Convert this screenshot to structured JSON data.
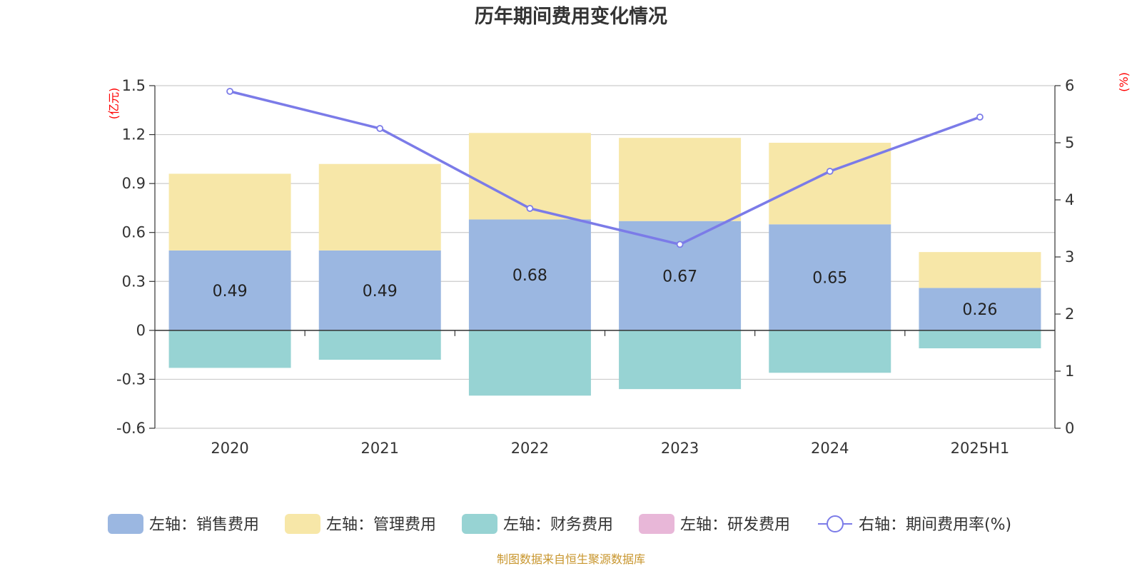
{
  "title": "历年期间费用变化情况",
  "source": "制图数据来自恒生聚源数据库",
  "colors": {
    "sales": "#9bb7e1",
    "admin": "#f7e7a8",
    "finance": "#97d3d3",
    "rnd": "#e8b7d8",
    "rate": "#7b7be8",
    "grid": "#cccccc",
    "unit": "#ff0000"
  },
  "chart_data": {
    "type": "bar",
    "stacked": true,
    "title": "历年期间费用变化情况",
    "categories": [
      "2020",
      "2021",
      "2022",
      "2023",
      "2024",
      "2025H1"
    ],
    "left_axis": {
      "unit": "(亿元)",
      "ylim": [
        -0.6,
        1.5
      ],
      "ticks": [
        "1.5",
        "1.2",
        "0.9",
        "0.6",
        "0.3",
        "0",
        "-0.3",
        "-0.6"
      ],
      "tick_values": [
        1.5,
        1.2,
        0.9,
        0.6,
        0.3,
        0,
        -0.3,
        -0.6
      ]
    },
    "right_axis": {
      "unit": "(%)",
      "ylim": [
        0,
        6
      ],
      "ticks": [
        "6",
        "5",
        "4",
        "3",
        "2",
        "1",
        "0"
      ],
      "tick_values": [
        6,
        5,
        4,
        3,
        2,
        1,
        0
      ]
    },
    "series": [
      {
        "name": "左轴：销售费用",
        "axis": "left",
        "type": "bar",
        "values": [
          0.49,
          0.49,
          0.68,
          0.67,
          0.65,
          0.26
        ],
        "labels": [
          "0.49",
          "0.49",
          "0.68",
          "0.67",
          "0.65",
          "0.26"
        ]
      },
      {
        "name": "左轴：管理费用",
        "axis": "left",
        "type": "bar",
        "values": [
          0.47,
          0.53,
          0.53,
          0.51,
          0.5,
          0.22
        ]
      },
      {
        "name": "左轴：财务费用",
        "axis": "left",
        "type": "bar",
        "values": [
          -0.23,
          -0.18,
          -0.4,
          -0.36,
          -0.26,
          -0.11
        ]
      },
      {
        "name": "左轴：研发费用",
        "axis": "left",
        "type": "bar",
        "values": [
          0,
          0,
          0,
          0,
          0,
          0
        ]
      },
      {
        "name": "右轴：期间费用率(%)",
        "axis": "right",
        "type": "line",
        "values": [
          5.9,
          5.25,
          3.85,
          3.22,
          4.5,
          5.45
        ]
      }
    ],
    "grid": true,
    "legend_position": "bottom"
  }
}
